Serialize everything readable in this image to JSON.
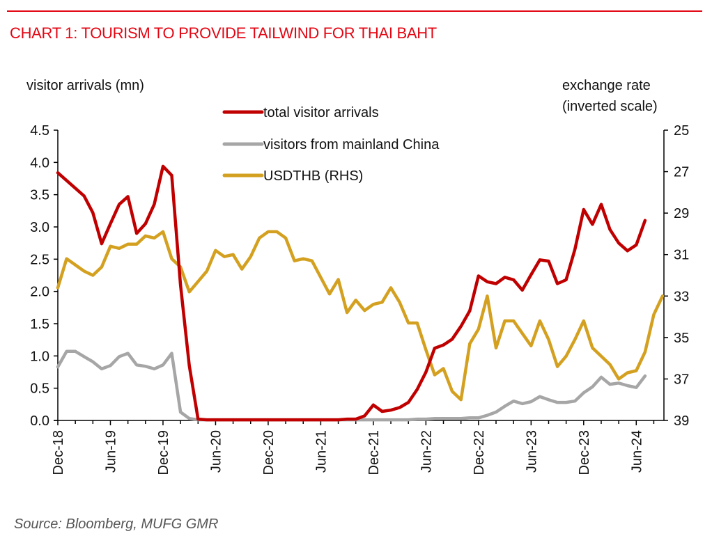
{
  "header": {
    "title": "CHART 1: TOURISM TO PROVIDE TAILWIND FOR THAI BAHT"
  },
  "footer": {
    "source": "Source: Bloomberg, MUFG GMR"
  },
  "colors": {
    "total": "#c00000",
    "china": "#a6a6a6",
    "usdthb": "#d4a020",
    "title": "#e30613"
  },
  "chart_data": {
    "type": "line",
    "title": "CHART 1: TOURISM TO PROVIDE TAILWIND FOR THAI BAHT",
    "ylabel": "visitor arrivals (mn)",
    "ylabel_right_line1": "exchange rate",
    "ylabel_right_line2": "(inverted scale)",
    "ylim": [
      0,
      4.5
    ],
    "ylim_right": [
      25,
      39
    ],
    "y_right_inverted": true,
    "yticks": [
      "0.0",
      "0.5",
      "1.0",
      "1.5",
      "2.0",
      "2.5",
      "3.0",
      "3.5",
      "4.0",
      "4.5"
    ],
    "yticks_right": [
      "25",
      "27",
      "29",
      "31",
      "33",
      "35",
      "37",
      "39"
    ],
    "xticks": [
      "Dec-18",
      "Jun-19",
      "Dec-19",
      "Jun-20",
      "Dec-20",
      "Jun-21",
      "Dec-21",
      "Jun-22",
      "Dec-22",
      "Jun-23",
      "Dec-23",
      "Jun-24"
    ],
    "x_start": "Dec-18",
    "x_frequency": "monthly",
    "legend_position": "top-center",
    "series": [
      {
        "name": "total visitor arrivals",
        "axis": "left",
        "values": [
          3.84,
          3.72,
          3.6,
          3.48,
          3.22,
          2.74,
          3.05,
          3.35,
          3.47,
          2.9,
          3.05,
          3.35,
          3.94,
          3.8,
          2.1,
          0.85,
          0.02,
          0.01,
          0.01,
          0.01,
          0.01,
          0.01,
          0.01,
          0.01,
          0.01,
          0.01,
          0.01,
          0.01,
          0.01,
          0.01,
          0.01,
          0.01,
          0.01,
          0.02,
          0.02,
          0.07,
          0.24,
          0.14,
          0.16,
          0.2,
          0.28,
          0.48,
          0.75,
          1.12,
          1.17,
          1.26,
          1.46,
          1.7,
          2.24,
          2.15,
          2.12,
          2.22,
          2.18,
          2.02,
          2.26,
          2.49,
          2.47,
          2.12,
          2.18,
          2.65,
          3.27,
          3.04,
          3.35,
          2.96,
          2.75,
          2.63,
          2.72,
          3.1
        ]
      },
      {
        "name": "visitors from mainland China",
        "axis": "left",
        "values": [
          0.83,
          1.07,
          1.07,
          0.99,
          0.91,
          0.8,
          0.85,
          0.99,
          1.04,
          0.86,
          0.84,
          0.8,
          0.86,
          1.04,
          0.13,
          0.03,
          0.01,
          0.01,
          0.01,
          0.01,
          0.01,
          0.01,
          0.01,
          0.01,
          0.01,
          0.01,
          0.01,
          0.01,
          0.01,
          0.01,
          0.01,
          0.01,
          0.01,
          0.01,
          0.01,
          0.01,
          0.01,
          0.01,
          0.01,
          0.01,
          0.01,
          0.02,
          0.02,
          0.03,
          0.03,
          0.03,
          0.03,
          0.04,
          0.04,
          0.08,
          0.13,
          0.22,
          0.3,
          0.26,
          0.29,
          0.37,
          0.32,
          0.28,
          0.28,
          0.3,
          0.43,
          0.52,
          0.67,
          0.56,
          0.58,
          0.54,
          0.51,
          0.69
        ]
      },
      {
        "name": "USDTHB (RHS)",
        "axis": "right",
        "values": [
          32.6,
          31.2,
          31.5,
          31.8,
          32.0,
          31.6,
          30.6,
          30.7,
          30.5,
          30.5,
          30.1,
          30.2,
          29.9,
          31.2,
          31.6,
          32.8,
          32.3,
          31.8,
          30.8,
          31.1,
          31.0,
          31.7,
          31.1,
          30.2,
          29.9,
          29.9,
          30.2,
          31.3,
          31.2,
          31.3,
          32.1,
          32.9,
          32.2,
          33.8,
          33.2,
          33.7,
          33.4,
          33.3,
          32.6,
          33.3,
          34.3,
          34.3,
          35.6,
          36.8,
          36.5,
          37.6,
          38.0,
          35.3,
          34.6,
          33.0,
          35.5,
          34.2,
          34.2,
          34.8,
          35.4,
          34.2,
          35.1,
          36.4,
          35.9,
          35.1,
          34.2,
          35.5,
          35.9,
          36.3,
          37.0,
          36.7,
          36.6,
          35.7,
          33.9,
          33.0
        ]
      }
    ]
  }
}
